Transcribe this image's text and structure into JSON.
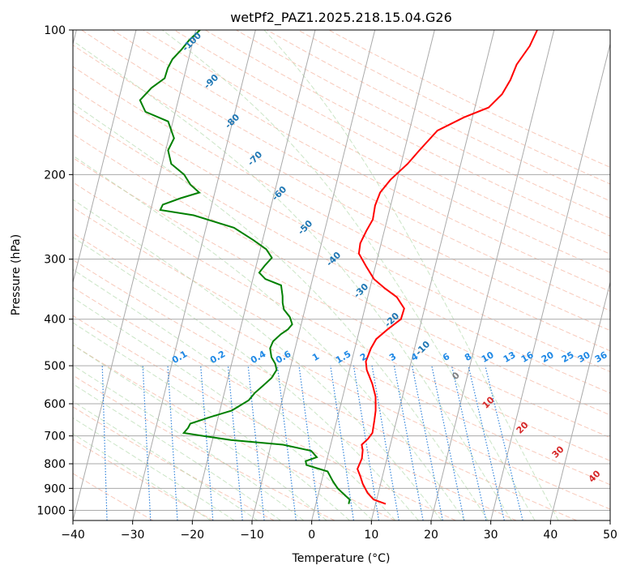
{
  "chart_data": {
    "type": "line",
    "title": "wetPf2_PAZ1.2025.218.15.04.G26",
    "xlabel": "Temperature (°C)",
    "ylabel": "Pressure (hPa)",
    "xlim": [
      -40,
      50
    ],
    "ylim": [
      1050,
      100
    ],
    "y_scale": "log",
    "grid": true,
    "x_ticks": [
      -40,
      -30,
      -20,
      -10,
      0,
      10,
      20,
      30,
      40,
      50
    ],
    "y_ticks": [
      1000,
      900,
      800,
      700,
      600,
      500,
      400,
      300,
      200,
      100
    ],
    "skew": "isotherms slanted up-right (skew-T)",
    "series": [
      {
        "color": "#ff0000",
        "points": [
          [
            11.7,
            970
          ],
          [
            9.5,
            950
          ],
          [
            8.2,
            920
          ],
          [
            7.0,
            880
          ],
          [
            6.3,
            850
          ],
          [
            5.5,
            820
          ],
          [
            5.8,
            780
          ],
          [
            5.6,
            750
          ],
          [
            5.2,
            730
          ],
          [
            6.0,
            710
          ],
          [
            6.5,
            690
          ],
          [
            6.3,
            650
          ],
          [
            6.1,
            620
          ],
          [
            5.5,
            580
          ],
          [
            4.4,
            545
          ],
          [
            2.9,
            510
          ],
          [
            2.4,
            490
          ],
          [
            2.7,
            460
          ],
          [
            3.2,
            440
          ],
          [
            4.7,
            420
          ],
          [
            6.5,
            400
          ],
          [
            6.6,
            380
          ],
          [
            4.9,
            360
          ],
          [
            2.5,
            345
          ],
          [
            0.3,
            330
          ],
          [
            -1.6,
            310
          ],
          [
            -3.3,
            292
          ],
          [
            -3.5,
            278
          ],
          [
            -3.0,
            262
          ],
          [
            -2.4,
            248
          ],
          [
            -2.6,
            232
          ],
          [
            -2.3,
            218
          ],
          [
            -1.1,
            205
          ],
          [
            1.1,
            190
          ],
          [
            2.5,
            178
          ],
          [
            4.7,
            162
          ],
          [
            8.6,
            152
          ],
          [
            12.3,
            145
          ],
          [
            14.0,
            136
          ],
          [
            14.8,
            127
          ],
          [
            15.2,
            118
          ],
          [
            16.6,
            108
          ],
          [
            17.2,
            100
          ]
        ]
      },
      {
        "color": "#008000",
        "points": [
          [
            5.5,
            970
          ],
          [
            5.5,
            950
          ],
          [
            4.5,
            930
          ],
          [
            3.0,
            900
          ],
          [
            1.9,
            870
          ],
          [
            0.6,
            830
          ],
          [
            -3.2,
            805
          ],
          [
            -3.5,
            790
          ],
          [
            -1.8,
            775
          ],
          [
            -3.0,
            752
          ],
          [
            -8.0,
            730
          ],
          [
            -16.9,
            714
          ],
          [
            -22.5,
            698
          ],
          [
            -25.1,
            690
          ],
          [
            -24.6,
            674
          ],
          [
            -24.4,
            660
          ],
          [
            -21.4,
            640
          ],
          [
            -18.0,
            620
          ],
          [
            -15.6,
            590
          ],
          [
            -14.9,
            570
          ],
          [
            -13.8,
            550
          ],
          [
            -12.7,
            530
          ],
          [
            -12.2,
            510
          ],
          [
            -12.7,
            495
          ],
          [
            -13.6,
            480
          ],
          [
            -14.2,
            460
          ],
          [
            -14.0,
            445
          ],
          [
            -13.0,
            430
          ],
          [
            -12.0,
            420
          ],
          [
            -11.5,
            410
          ],
          [
            -12.2,
            396
          ],
          [
            -13.5,
            382
          ],
          [
            -14.0,
            370
          ],
          [
            -14.3,
            358
          ],
          [
            -15.0,
            340
          ],
          [
            -17.9,
            330
          ],
          [
            -19.2,
            320
          ],
          [
            -18.6,
            310
          ],
          [
            -17.7,
            298
          ],
          [
            -19.0,
            286
          ],
          [
            -21.5,
            274
          ],
          [
            -25.3,
            258
          ],
          [
            -32.6,
            243
          ],
          [
            -38.4,
            237
          ],
          [
            -38.2,
            231
          ],
          [
            -35.5,
            224
          ],
          [
            -32.6,
            218
          ],
          [
            -34.4,
            210
          ],
          [
            -35.9,
            200
          ],
          [
            -38.5,
            190
          ],
          [
            -39.6,
            178
          ],
          [
            -39.1,
            168
          ],
          [
            -40.8,
            155
          ],
          [
            -45.0,
            148
          ],
          [
            -46.4,
            140
          ],
          [
            -45.0,
            132
          ],
          [
            -43.2,
            126
          ],
          [
            -43.1,
            120
          ],
          [
            -42.7,
            115
          ],
          [
            -41.6,
            110
          ],
          [
            -40.7,
            105
          ],
          [
            -39.3,
            100
          ]
        ]
      }
    ],
    "annotations": {
      "dry_adiabats": [
        "-100",
        "-90",
        "-80",
        "-70",
        "-60",
        "-50",
        "-40",
        "-30",
        "-20",
        "-10",
        "0",
        "10",
        "20",
        "30",
        "40"
      ],
      "mixing_ratios": [
        "0.1",
        "0.2",
        "0.4",
        "0.6",
        "1",
        "1.5",
        "2",
        "3",
        "4",
        "6",
        "8",
        "10",
        "13",
        "16",
        "20",
        "25",
        "30",
        "36"
      ]
    }
  }
}
